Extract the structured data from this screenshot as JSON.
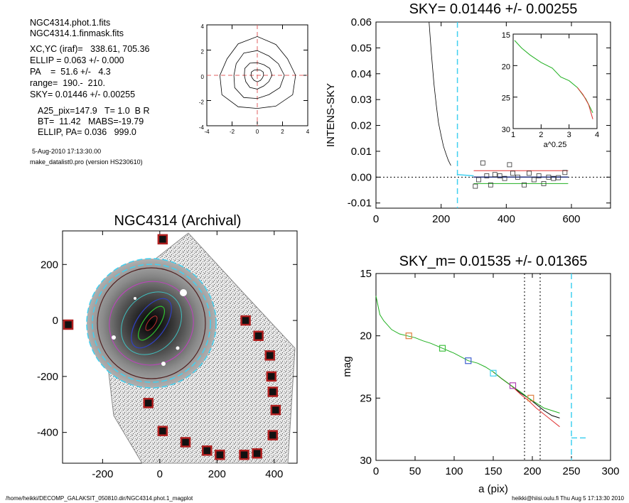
{
  "header_info": {
    "lines": [
      "NGC4314.phot.1.fits",
      "NGC4314.1.finmask.fits",
      "XC,YC (iraf)=   338.61, 705.36",
      "ELLIP = 0.063 +/- 0.000",
      "PA    =  51.6 +/-   4.3",
      "range=  190.-  210.",
      "SKY= 0.01446 +/- 0.00255",
      "A25_pix=147.9   T= 1.0  B R",
      "BT=  11.42   MABS=-19.79",
      "ELLIP, PA= 0.036   999.0",
      "5-Aug-2010 17:13:30.00",
      "make_datalist0.pro (version HS230610)"
    ]
  },
  "footer": {
    "left": "/home/heikki/DECOMP_GALAKSIT_050810.dir/NGC4314.phot.1_magplot",
    "right": "heikki@hiisi.oulu.fi  Thu Aug  5 17:13:30 2010"
  },
  "colors": {
    "profile_red": "#e03030",
    "profile_green": "#20b020",
    "sky_cyan": "#40d0f0",
    "marker_red": "#d04040",
    "marker_blue": "#4060d0",
    "marker_green": "#40c040",
    "marker_purple": "#b040b0",
    "marker_orange": "#e08040",
    "mask_box": "#b02020"
  },
  "chart_data": [
    {
      "id": "contour",
      "type": "contour",
      "xlim": [
        -4,
        4
      ],
      "ylim": [
        -4,
        4
      ],
      "xticks": [
        -4,
        -2,
        0,
        2,
        4
      ],
      "yticks": [
        -4,
        -2,
        0,
        2,
        4
      ],
      "center": [
        0,
        0
      ],
      "levels": [
        0.5,
        1.1,
        2.0,
        3.0
      ]
    },
    {
      "id": "sky",
      "type": "scatter",
      "title": "SKY= 0.01446 +/- 0.00255",
      "xlabel": "",
      "ylabel": "INTENS-SKY",
      "xlim": [
        0,
        720
      ],
      "ylim": [
        -0.012,
        0.06
      ],
      "xticks": [
        0,
        200,
        400,
        600
      ],
      "yticks": [
        -0.01,
        0.0,
        0.01,
        0.02,
        0.03,
        0.04,
        0.05,
        0.06
      ],
      "ytick_labels": [
        "-0.01",
        "0.00",
        "0.01",
        "0.02",
        "0.03",
        "0.04",
        "0.05",
        "0.06"
      ],
      "grid": false,
      "vline": 250,
      "profile_x": [
        163,
        170,
        178,
        185,
        192,
        200,
        207,
        215,
        222,
        230
      ],
      "profile_y": [
        0.06,
        0.048,
        0.036,
        0.028,
        0.021,
        0.016,
        0.012,
        0.009,
        0.0065,
        0.0045
      ],
      "points": [
        [
          305,
          -0.0035
        ],
        [
          315,
          -0.001
        ],
        [
          328,
          0.0055
        ],
        [
          340,
          0.0005
        ],
        [
          352,
          -0.003
        ],
        [
          365,
          0.001
        ],
        [
          380,
          0.0005
        ],
        [
          395,
          -0.0005
        ],
        [
          410,
          0.0048
        ],
        [
          420,
          0.0015
        ],
        [
          435,
          0.0
        ],
        [
          455,
          -0.003
        ],
        [
          470,
          0.0015
        ],
        [
          485,
          -0.001
        ],
        [
          500,
          0.0005
        ],
        [
          515,
          -0.0025
        ],
        [
          530,
          0.0
        ],
        [
          545,
          -0.0005
        ],
        [
          560,
          -0.0002
        ],
        [
          580,
          0.0018
        ]
      ],
      "inset": {
        "xlabel": "a^0.25",
        "xlim": [
          1,
          4
        ],
        "ylim": [
          15,
          30
        ],
        "xticks": [
          1,
          2,
          3,
          4
        ],
        "yticks": [
          15,
          20,
          25,
          30
        ],
        "green_x": [
          1.05,
          1.3,
          1.6,
          2.0,
          2.4,
          2.7,
          3.0,
          3.3,
          3.6,
          3.85
        ],
        "green_y": [
          16.0,
          17.2,
          18.3,
          19.5,
          20.4,
          21.8,
          22.4,
          23.5,
          25.3,
          27.5
        ],
        "red_x": [
          3.3,
          3.5,
          3.7,
          3.85
        ],
        "red_y": [
          23.5,
          24.6,
          26.2,
          28.5
        ]
      }
    },
    {
      "id": "image",
      "type": "image",
      "title": "NGC4314 (Archival)",
      "xlim": [
        -340,
        480
      ],
      "ylim": [
        -510,
        320
      ],
      "xticks": [
        -200,
        0,
        200,
        400
      ],
      "yticks": [
        -400,
        -200,
        0,
        200
      ],
      "mask_boxes": [
        [
          10,
          290
        ],
        [
          -320,
          -15
        ],
        [
          300,
          0
        ],
        [
          345,
          -55
        ],
        [
          385,
          -125
        ],
        [
          390,
          -200
        ],
        [
          395,
          -255
        ],
        [
          405,
          -320
        ],
        [
          -40,
          -295
        ],
        [
          10,
          -395
        ],
        [
          90,
          -435
        ],
        [
          165,
          -465
        ],
        [
          210,
          -480
        ],
        [
          295,
          -480
        ],
        [
          340,
          -475
        ],
        [
          395,
          -410
        ]
      ]
    },
    {
      "id": "mag",
      "type": "line",
      "title": "SKY_m=  0.01535 +/- 0.01365",
      "xlabel": "a (pix)",
      "ylabel": "mag",
      "xlim": [
        0,
        300
      ],
      "ylim": [
        15,
        30
      ],
      "xticks": [
        0,
        50,
        100,
        150,
        200,
        250,
        300
      ],
      "yticks": [
        15,
        20,
        25,
        30
      ],
      "vlines_dotted": [
        190,
        210
      ],
      "vline_dashed": 250,
      "green_x": [
        0,
        5,
        10,
        20,
        30,
        40,
        50,
        60,
        70,
        85,
        100,
        118,
        130,
        140,
        150,
        160,
        173,
        185,
        195,
        205,
        215,
        225,
        235
      ],
      "green_y": [
        16.8,
        18.3,
        18.8,
        19.5,
        19.85,
        20.0,
        20.15,
        20.4,
        20.6,
        21.0,
        21.4,
        22.0,
        22.2,
        22.5,
        22.9,
        23.4,
        24.0,
        24.5,
        25.0,
        25.4,
        25.8,
        26.0,
        26.2
      ],
      "red_x": [
        150,
        160,
        173,
        185,
        195,
        205,
        215,
        225,
        235
      ],
      "red_y": [
        22.9,
        23.4,
        24.0,
        24.7,
        25.2,
        25.8,
        26.3,
        26.8,
        27.3
      ],
      "black_x": [
        150,
        160,
        173,
        185,
        195,
        205,
        215,
        225,
        235
      ],
      "black_y": [
        22.9,
        23.4,
        24.0,
        24.6,
        25.0,
        25.5,
        26.0,
        26.4,
        26.6
      ],
      "markers": [
        {
          "x": 42,
          "y": 20.0,
          "color": "orange"
        },
        {
          "x": 85,
          "y": 21.0,
          "color": "green"
        },
        {
          "x": 118,
          "y": 22.0,
          "color": "blue"
        },
        {
          "x": 150,
          "y": 23.0,
          "color": "cyan"
        },
        {
          "x": 175,
          "y": 24.0,
          "color": "purple"
        },
        {
          "x": 198,
          "y": 25.0,
          "color": "orange"
        }
      ],
      "sky_segment": {
        "x": [
          250,
          270
        ],
        "y": [
          28.2,
          28.2
        ]
      }
    }
  ]
}
